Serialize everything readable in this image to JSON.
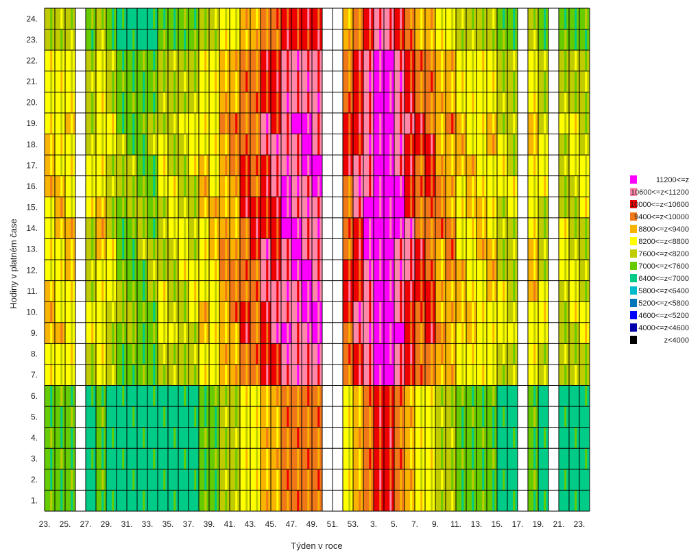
{
  "chart_data": {
    "type": "heatmap",
    "title": "",
    "xlabel": "Týden v roce",
    "ylabel": "Hodiny v platném čase",
    "x_tick_labels": [
      "23.",
      "25.",
      "27.",
      "29.",
      "31.",
      "33.",
      "35.",
      "37.",
      "39.",
      "41.",
      "43.",
      "45.",
      "47.",
      "49.",
      "51.",
      "53.",
      "3.",
      "5.",
      "7.",
      "9.",
      "11.",
      "13.",
      "15.",
      "17.",
      "19.",
      "21.",
      "23."
    ],
    "y_tick_labels": [
      "1.",
      "2.",
      "3.",
      "4.",
      "5.",
      "6.",
      "7.",
      "8.",
      "9.",
      "10.",
      "11.",
      "12.",
      "13.",
      "14.",
      "15.",
      "16.",
      "17.",
      "18.",
      "19.",
      "20.",
      "21.",
      "22.",
      "23.",
      "24."
    ],
    "hours": 24,
    "weeks": 53,
    "grid": true,
    "legend_position": "right",
    "legend": [
      {
        "label": "11200<=z",
        "color": "#ff00ff"
      },
      {
        "label": "10600<=z<11200",
        "color": "#ff88aa"
      },
      {
        "label": "10000<=z<10600",
        "color": "#ee0000"
      },
      {
        "label": "9400<=z<10000",
        "color": "#f07818"
      },
      {
        "label": "8800<=z<9400",
        "color": "#f8b400"
      },
      {
        "label": "8200<=z<8800",
        "color": "#ffff00"
      },
      {
        "label": "7600<=z<8200",
        "color": "#c0cc00"
      },
      {
        "label": "7000<=z<7600",
        "color": "#66cc00"
      },
      {
        "label": "6400<=z<7000",
        "color": "#00cc88"
      },
      {
        "label": "5800<=z<6400",
        "color": "#00bbcc"
      },
      {
        "label": "5200<=z<5800",
        "color": "#0077bb"
      },
      {
        "label": "4600<=z<5200",
        "color": "#0000ff"
      },
      {
        "label": "4000<=z<4600",
        "color": "#0000aa"
      },
      {
        "label": "z<4000",
        "color": "#000000"
      }
    ],
    "week_level_profile": [
      3,
      3,
      3,
      2,
      2,
      3,
      2,
      1,
      1,
      1,
      1,
      2,
      2,
      2,
      2,
      3,
      3,
      4,
      4,
      5,
      5,
      6,
      6,
      7,
      7,
      7,
      7,
      6,
      5,
      5,
      6,
      7,
      8,
      8,
      7,
      6,
      5,
      5,
      4,
      4,
      3,
      3,
      3,
      3,
      2,
      2,
      3,
      3,
      2,
      2,
      2,
      2,
      2
    ],
    "blank_weeks": [
      3,
      27,
      28,
      46,
      49
    ]
  }
}
